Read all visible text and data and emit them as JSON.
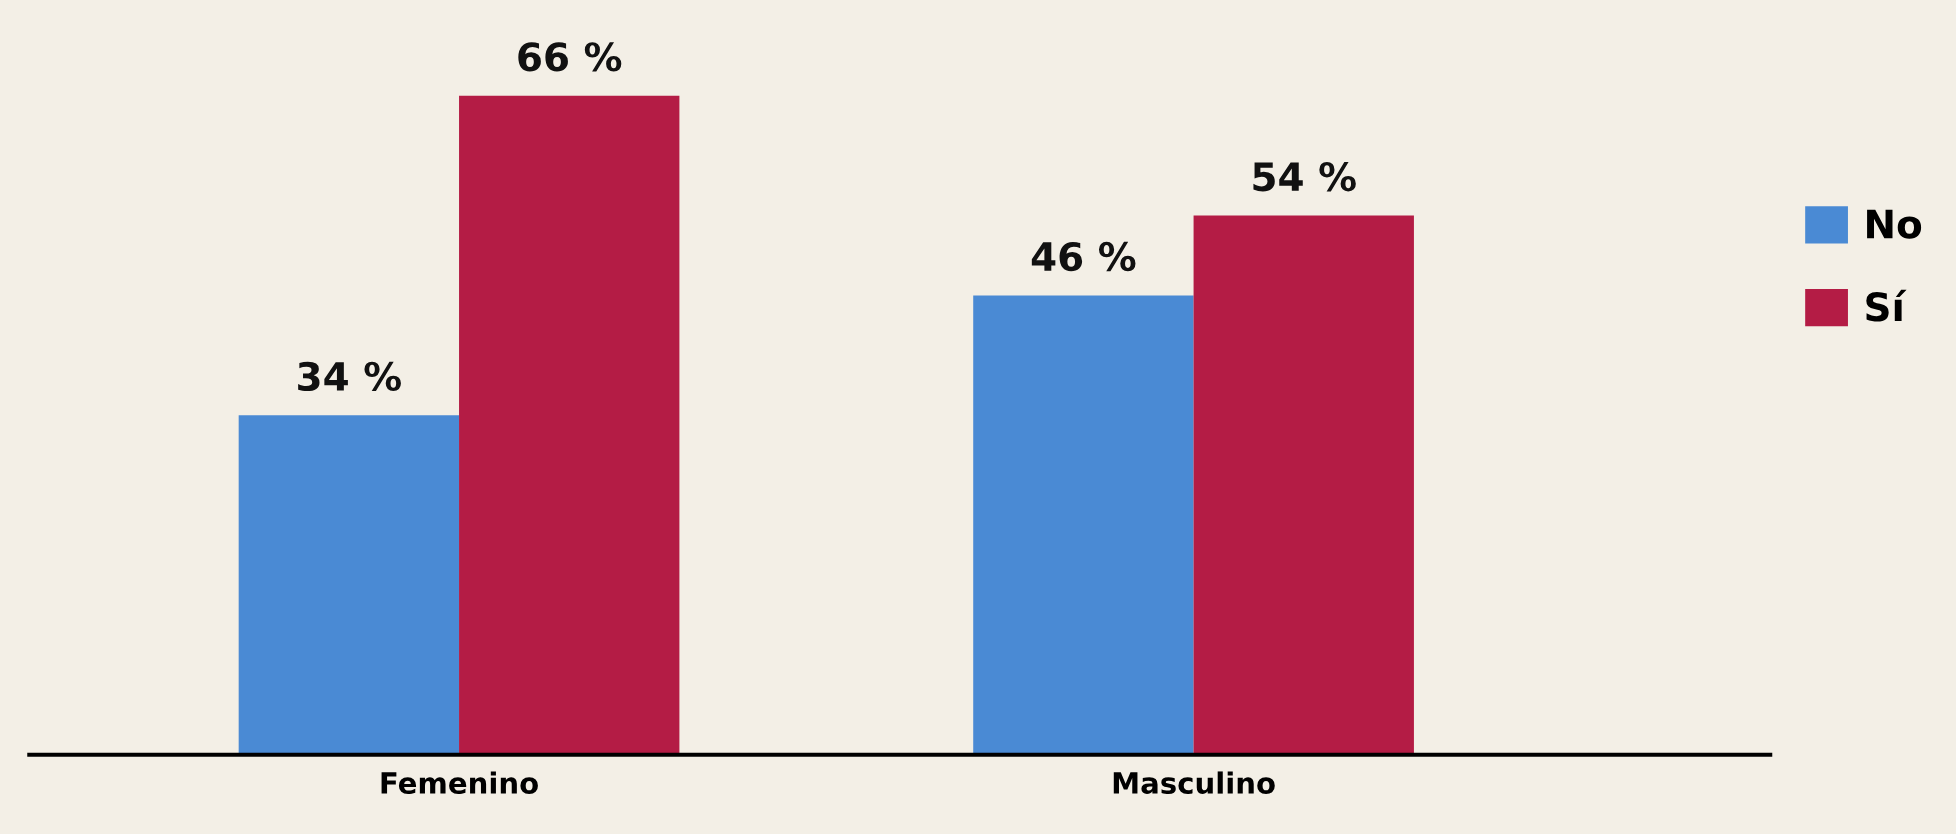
{
  "chart_data": {
    "type": "bar",
    "categories": [
      "Femenino",
      "Masculino"
    ],
    "series": [
      {
        "name": "No",
        "color": "#4a8ad4",
        "values": [
          34,
          46
        ],
        "value_labels": [
          "34 %",
          "46 %"
        ]
      },
      {
        "name": "Sí",
        "color": "#b41c45",
        "values": [
          66,
          54
        ],
        "value_labels": [
          "66 %",
          "54 %"
        ]
      }
    ],
    "legend": "right",
    "grid": false
  }
}
